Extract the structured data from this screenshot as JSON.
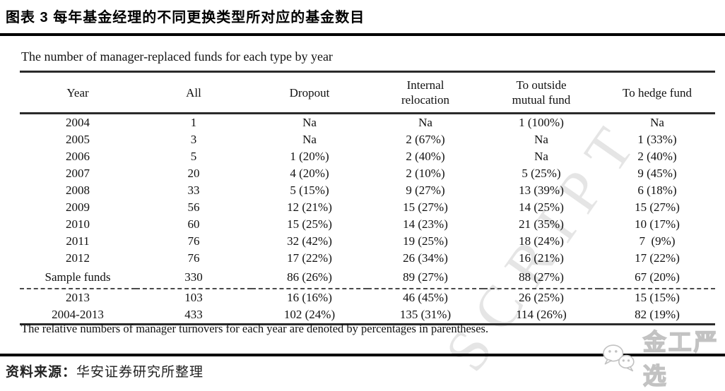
{
  "title": "图表 3 每年基金经理的不同更换类型所对应的基金数目",
  "table": {
    "caption": "The number of manager-replaced funds for each type by year",
    "columns": [
      "Year",
      "All",
      "Dropout",
      "Internal\nrelocation",
      "To outside\nmutual fund",
      "To hedge fund"
    ],
    "rows": [
      [
        "2004",
        "1",
        "Na",
        "Na",
        "1 (100%)",
        "Na"
      ],
      [
        "2005",
        "3",
        "Na",
        "2 (67%)",
        "Na",
        "1 (33%)"
      ],
      [
        "2006",
        "5",
        "1 (20%)",
        "2 (40%)",
        "Na",
        "2 (40%)"
      ],
      [
        "2007",
        "20",
        "4 (20%)",
        "2 (10%)",
        "5 (25%)",
        "9 (45%)"
      ],
      [
        "2008",
        "33",
        "5 (15%)",
        "9 (27%)",
        "13 (39%)",
        "6 (18%)"
      ],
      [
        "2009",
        "56",
        "12 (21%)",
        "15 (27%)",
        "14 (25%)",
        "15 (27%)"
      ],
      [
        "2010",
        "60",
        "15 (25%)",
        "14 (23%)",
        "21 (35%)",
        "10 (17%)"
      ],
      [
        "2011",
        "76",
        "32 (42%)",
        "19 (25%)",
        "18 (24%)",
        "7  (9%)"
      ],
      [
        "2012",
        "76",
        "17 (22%)",
        "26 (34%)",
        "16 (21%)",
        "17 (22%)"
      ],
      [
        "Sample funds",
        "330",
        "86 (26%)",
        "89 (27%)",
        "88 (27%)",
        "67 (20%)"
      ]
    ],
    "rows_after_dash": [
      [
        "2013",
        "103",
        "16 (16%)",
        "46 (45%)",
        "26 (25%)",
        "15 (15%)"
      ],
      [
        "2004-2013",
        "433",
        "102 (24%)",
        "135 (31%)",
        "114 (26%)",
        "82 (19%)"
      ]
    ],
    "note": "The relative numbers of manager turnovers for each year are denoted by percentages in parentheses."
  },
  "source": {
    "label": "资料来源：",
    "text": "华安证券研究所整理"
  },
  "watermark": {
    "diagonal_text": "SCRIPT",
    "logo_text": "金工严选"
  },
  "colors": {
    "rule_black": "#000000",
    "table_rule": "#2a2a2a",
    "diagonal_watermark": "#d4d4d4",
    "logo_gray": "#c2c2c2"
  }
}
